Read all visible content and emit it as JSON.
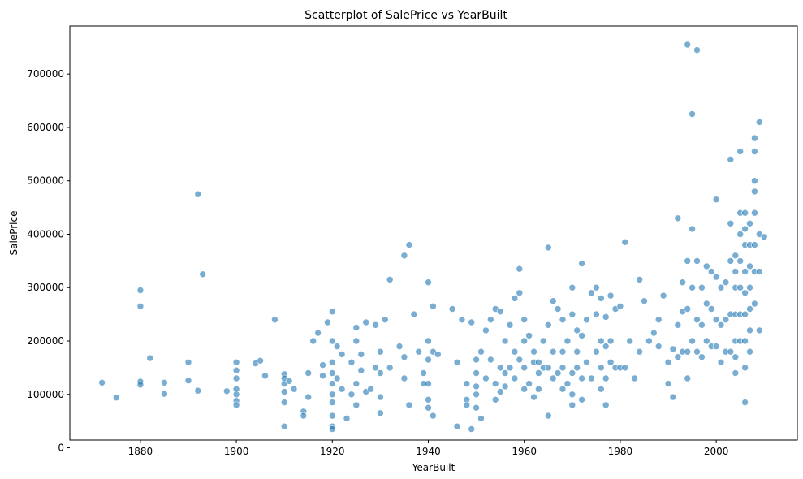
{
  "chart_data": {
    "type": "scatter",
    "title": "Scatterplot of SalePrice vs YearBuilt",
    "xlabel": "YearBuilt",
    "ylabel": "SalePrice",
    "xlim": [
      1865.3,
      2016.9
    ],
    "ylim": [
      14500,
      790000
    ],
    "xticks": [
      1880,
      1900,
      1920,
      1940,
      1960,
      1980,
      2000
    ],
    "yticks": [
      0,
      100000,
      200000,
      300000,
      400000,
      500000,
      600000,
      700000
    ],
    "grid": false,
    "legend": "none",
    "marker_color": "#1f77b4",
    "marker_opacity": 0.6,
    "series": [
      {
        "x": [
          1872,
          1875,
          1880,
          1880,
          1880,
          1880,
          1882,
          1885,
          1885,
          1890,
          1890,
          1892,
          1892,
          1893,
          1898,
          1900,
          1900,
          1900,
          1900,
          1900,
          1900,
          1900,
          1904,
          1905,
          1906,
          1908,
          1910,
          1910,
          1910,
          1910,
          1910,
          1910,
          1911,
          1912,
          1914,
          1914,
          1915,
          1915,
          1916,
          1917,
          1918,
          1918,
          1919,
          1920,
          1920,
          1920,
          1920,
          1920,
          1920,
          1920,
          1920,
          1920,
          1920,
          1921,
          1921,
          1922,
          1922,
          1923,
          1924,
          1924,
          1925,
          1925,
          1925,
          1925,
          1926,
          1926,
          1927,
          1927,
          1928,
          1929,
          1929,
          1930,
          1930,
          1930,
          1930,
          1931,
          1932,
          1932,
          1934,
          1935,
          1935,
          1935,
          1936,
          1936,
          1937,
          1938,
          1939,
          1939,
          1940,
          1940,
          1940,
          1940,
          1940,
          1940,
          1941,
          1941,
          1941,
          1942,
          1945,
          1946,
          1946,
          1947,
          1948,
          1948,
          1948,
          1949,
          1949,
          1950,
          1950,
          1950,
          1950,
          1950,
          1951,
          1951,
          1952,
          1952,
          1953,
          1953,
          1954,
          1954,
          1954,
          1955,
          1955,
          1955,
          1956,
          1956,
          1956,
          1957,
          1957,
          1958,
          1958,
          1958,
          1959,
          1959,
          1959,
          1960,
          1960,
          1960,
          1960,
          1961,
          1961,
          1962,
          1962,
          1962,
          1963,
          1963,
          1963,
          1964,
          1964,
          1965,
          1965,
          1965,
          1965,
          1966,
          1966,
          1966,
          1967,
          1967,
          1968,
          1968,
          1968,
          1968,
          1969,
          1969,
          1970,
          1970,
          1970,
          1970,
          1970,
          1971,
          1971,
          1971,
          1972,
          1972,
          1972,
          1972,
          1973,
          1973,
          1974,
          1974,
          1975,
          1975,
          1975,
          1976,
          1976,
          1976,
          1976,
          1977,
          1977,
          1977,
          1977,
          1978,
          1978,
          1978,
          1979,
          1979,
          1980,
          1980,
          1981,
          1981,
          1982,
          1983,
          1984,
          1984,
          1985,
          1986,
          1987,
          1988,
          1988,
          1989,
          1990,
          1990,
          1991,
          1991,
          1992,
          1992,
          1992,
          1993,
          1993,
          1993,
          1994,
          1994,
          1994,
          1994,
          1994,
          1995,
          1995,
          1995,
          1995,
          1996,
          1996,
          1996,
          1996,
          1997,
          1997,
          1997,
          1998,
          1998,
          1998,
          1999,
          1999,
          1999,
          2000,
          2000,
          2000,
          2000,
          2001,
          2001,
          2001,
          2002,
          2002,
          2002,
          2003,
          2003,
          2003,
          2003,
          2003,
          2004,
          2004,
          2004,
          2004,
          2004,
          2004,
          2004,
          2005,
          2005,
          2005,
          2005,
          2005,
          2005,
          2005,
          2006,
          2006,
          2006,
          2006,
          2006,
          2006,
          2006,
          2006,
          2006,
          2007,
          2007,
          2007,
          2007,
          2007,
          2007,
          2007,
          2008,
          2008,
          2008,
          2008,
          2008,
          2008,
          2008,
          2008,
          2009,
          2009,
          2009,
          2009,
          2010
        ],
        "y": [
          122000,
          94000,
          295000,
          265000,
          124000,
          118000,
          168000,
          122000,
          101000,
          160000,
          126000,
          475000,
          107000,
          325000,
          106000,
          160000,
          145000,
          130000,
          110000,
          100000,
          88000,
          80000,
          158000,
          163000,
          135000,
          240000,
          138000,
          120000,
          105000,
          85000,
          40000,
          130000,
          125000,
          110000,
          68000,
          60000,
          140000,
          95000,
          200000,
          215000,
          155000,
          135000,
          235000,
          255000,
          200000,
          160000,
          140000,
          120000,
          100000,
          85000,
          60000,
          40000,
          35000,
          190000,
          130000,
          175000,
          110000,
          55000,
          160000,
          100000,
          225000,
          200000,
          120000,
          80000,
          175000,
          145000,
          235000,
          105000,
          110000,
          230000,
          150000,
          180000,
          140000,
          95000,
          65000,
          240000,
          315000,
          150000,
          190000,
          360000,
          170000,
          130000,
          380000,
          80000,
          250000,
          180000,
          140000,
          120000,
          310000,
          200000,
          165000,
          120000,
          90000,
          75000,
          265000,
          180000,
          60000,
          175000,
          260000,
          160000,
          40000,
          240000,
          120000,
          90000,
          80000,
          235000,
          35000,
          165000,
          140000,
          115000,
          100000,
          75000,
          180000,
          55000,
          220000,
          130000,
          240000,
          165000,
          260000,
          120000,
          90000,
          255000,
          150000,
          105000,
          200000,
          140000,
          115000,
          230000,
          150000,
          280000,
          180000,
          130000,
          335000,
          290000,
          165000,
          240000,
          200000,
          150000,
          110000,
          210000,
          120000,
          180000,
          160000,
          95000,
          160000,
          140000,
          110000,
          200000,
          150000,
          375000,
          230000,
          150000,
          60000,
          275000,
          180000,
          130000,
          260000,
          140000,
          240000,
          180000,
          150000,
          110000,
          200000,
          120000,
          300000,
          250000,
          140000,
          100000,
          80000,
          220000,
          180000,
          150000,
          345000,
          210000,
          130000,
          90000,
          240000,
          160000,
          290000,
          130000,
          300000,
          250000,
          180000,
          280000,
          200000,
          150000,
          110000,
          245000,
          190000,
          130000,
          80000,
          285000,
          200000,
          160000,
          260000,
          150000,
          265000,
          150000,
          385000,
          150000,
          200000,
          130000,
          315000,
          180000,
          275000,
          200000,
          215000,
          240000,
          190000,
          285000,
          160000,
          120000,
          185000,
          95000,
          430000,
          230000,
          170000,
          255000,
          310000,
          180000,
          755000,
          350000,
          260000,
          180000,
          130000,
          625000,
          410000,
          300000,
          200000,
          745000,
          350000,
          240000,
          180000,
          300000,
          230000,
          170000,
          340000,
          270000,
          200000,
          330000,
          260000,
          190000,
          465000,
          320000,
          240000,
          190000,
          300000,
          230000,
          160000,
          310000,
          240000,
          180000,
          540000,
          420000,
          350000,
          250000,
          180000,
          360000,
          330000,
          300000,
          250000,
          200000,
          170000,
          140000,
          555000,
          440000,
          400000,
          350000,
          300000,
          250000,
          200000,
          440000,
          410000,
          380000,
          330000,
          290000,
          250000,
          200000,
          150000,
          85000,
          420000,
          380000,
          340000,
          300000,
          260000,
          220000,
          180000,
          580000,
          555000,
          500000,
          480000,
          440000,
          380000,
          330000,
          270000,
          610000,
          400000,
          330000,
          220000,
          395000
        ]
      }
    ]
  }
}
